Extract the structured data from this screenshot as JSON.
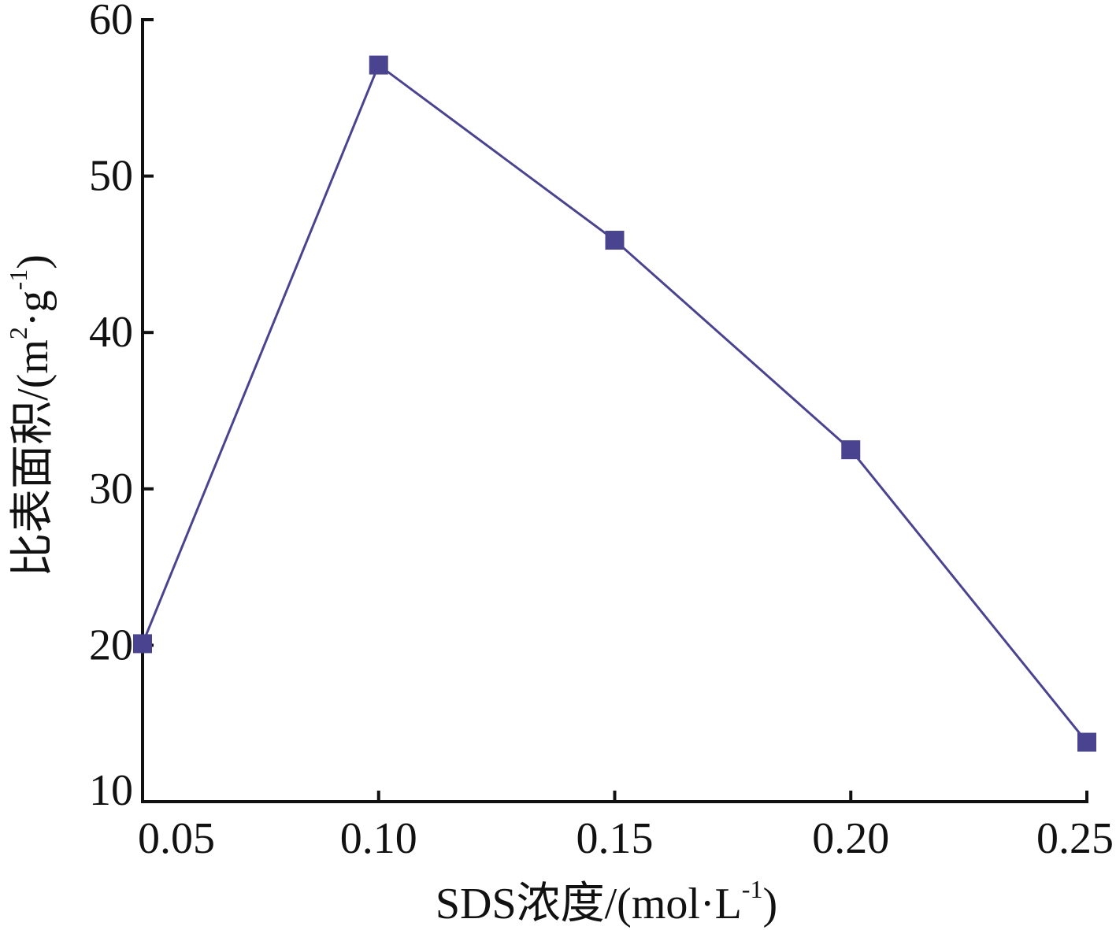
{
  "chart_data": {
    "type": "line",
    "title": "",
    "xlabel": "SDS浓度/(mol·L",
    "xlabel_sup": "-1",
    "xlabel_tail": ")",
    "ylabel": "比表面积/(m",
    "ylabel_sup1": "2",
    "ylabel_mid": "·g",
    "ylabel_sup2": "-1",
    "ylabel_tail": ")",
    "xlim": [
      0.05,
      0.25
    ],
    "ylim": [
      10,
      60
    ],
    "x_ticks": [
      0.05,
      0.1,
      0.15,
      0.2,
      0.25
    ],
    "x_tick_labels": [
      "0.05",
      "0.10",
      "0.15",
      "0.20",
      "0.25"
    ],
    "y_ticks": [
      10,
      20,
      30,
      40,
      50,
      60
    ],
    "y_tick_labels": [
      "10",
      "20",
      "30",
      "40",
      "50",
      "60"
    ],
    "grid": false,
    "series": [
      {
        "color": "#4a4490",
        "marker": "square",
        "x": [
          0.05,
          0.1,
          0.15,
          0.2,
          0.25
        ],
        "y": [
          20.1,
          57.1,
          45.9,
          32.5,
          13.8
        ]
      }
    ]
  }
}
